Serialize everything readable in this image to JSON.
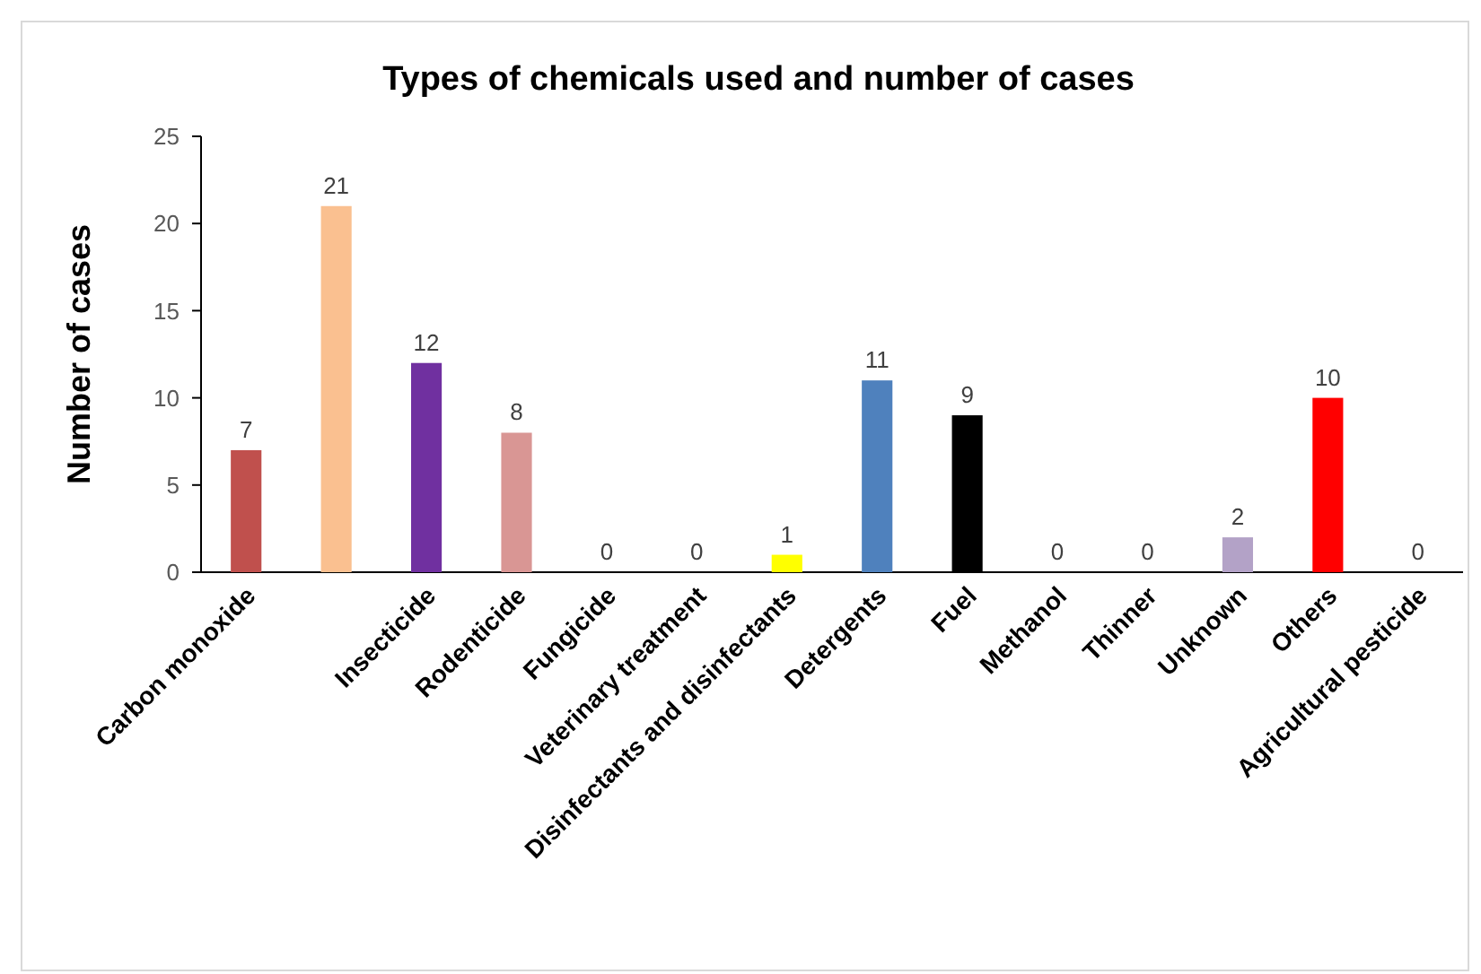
{
  "chart_data": {
    "type": "bar",
    "title": "Types of chemicals used and number of cases",
    "ylabel": "Number of cases",
    "categories": [
      "Carbon monoxide",
      null,
      "Insecticide",
      "Rodenticide",
      "Fungicide",
      "Veterinary treatment",
      "Disinfectants and disinfectants",
      "Detergents",
      "Fuel",
      "Methanol",
      "Thinner",
      "Unknown",
      "Others",
      "Agricultural pesticide"
    ],
    "values": [
      7,
      21,
      12,
      8,
      0,
      0,
      1,
      11,
      9,
      0,
      0,
      2,
      10,
      0
    ],
    "colors": [
      "#c0504d",
      "#fac090",
      "#7030a0",
      "#d99694",
      "#808080",
      "#808080",
      "#ffff00",
      "#4f81bd",
      "#000000",
      "#808080",
      "#808080",
      "#b3a2c7",
      "#ff0000",
      "#808080"
    ],
    "ylim": [
      0,
      25
    ],
    "yticks": [
      0,
      5,
      10,
      15,
      20,
      25
    ],
    "data_labels": true,
    "grid": false
  }
}
